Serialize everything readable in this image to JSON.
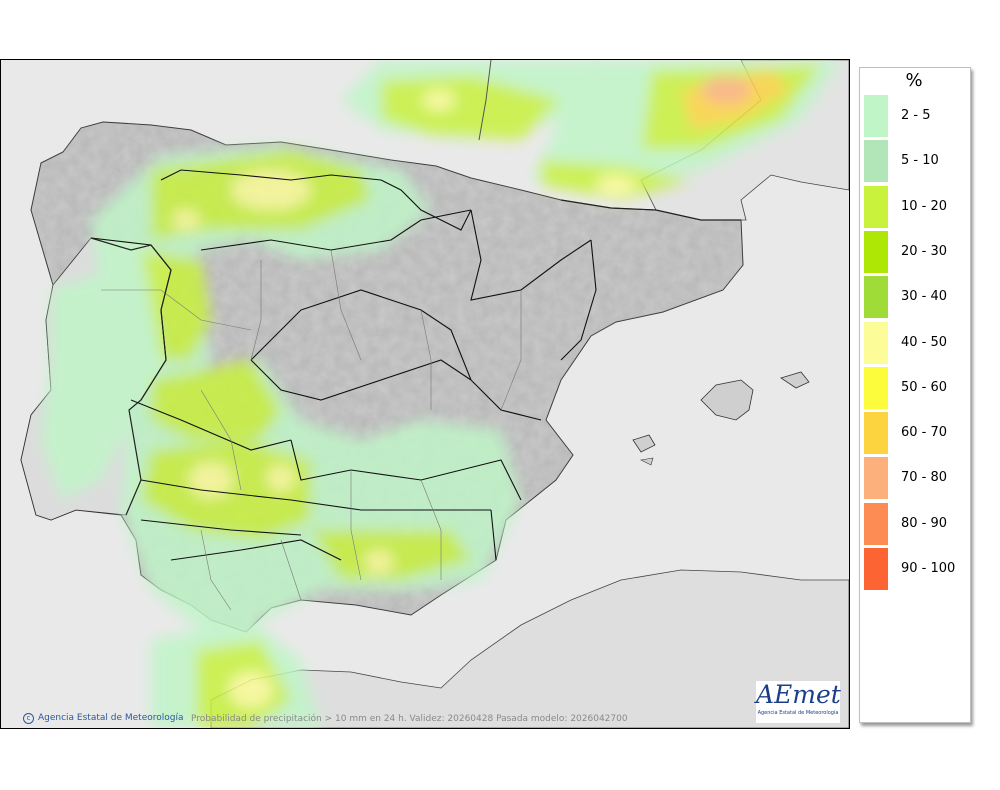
{
  "map": {
    "footer_agency": "Agencia Estatal de Meteorología",
    "footer_caption": "Probabilidad de precipitación > 10 mm en 24 h. Validez: 20260428 Pasada modelo: 2026042700",
    "logo_text": "AEmet",
    "logo_subtext": "Agencia Estatal de Meteorología"
  },
  "legend": {
    "unit": "%",
    "items": [
      {
        "label": "2 - 5",
        "color": "#c0f5c8"
      },
      {
        "label": "5 - 10",
        "color": "#b2e6b8"
      },
      {
        "label": "10 - 20",
        "color": "#c8f23c"
      },
      {
        "label": "20 - 30",
        "color": "#aee606"
      },
      {
        "label": "30 - 40",
        "color": "#a0dc38"
      },
      {
        "label": "40 - 50",
        "color": "#fcfc98"
      },
      {
        "label": "50 - 60",
        "color": "#fcfc3c"
      },
      {
        "label": "60 - 70",
        "color": "#fcd440"
      },
      {
        "label": "70 - 80",
        "color": "#fcb07c"
      },
      {
        "label": "80 - 90",
        "color": "#fc8c54"
      },
      {
        "label": "90 - 100",
        "color": "#fc6434"
      }
    ]
  },
  "colors": {
    "sea": "#e9e9e9",
    "land": "#c9c9c9",
    "border": "#000000"
  }
}
